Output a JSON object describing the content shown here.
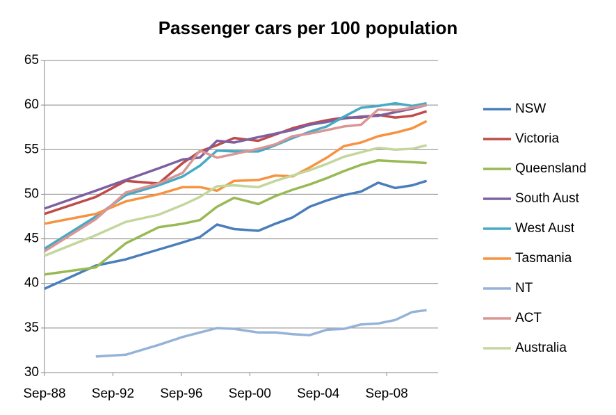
{
  "chart_data": {
    "type": "line",
    "title": "Passenger cars per 100 population",
    "x": [
      "1988-09",
      "1991-09",
      "1993-06",
      "1995-05",
      "1996-10",
      "1997-10",
      "1998-10",
      "1999-10",
      "2001-03",
      "2002-03",
      "2003-03",
      "2004-03",
      "2005-03",
      "2006-03",
      "2007-03",
      "2008-03",
      "2009-03",
      "2010-03",
      "2011-01"
    ],
    "xlim": [
      "1988-09",
      "2011-09"
    ],
    "xticks": [
      {
        "value": "1988-09",
        "label": "Sep-88"
      },
      {
        "value": "1992-09",
        "label": "Sep-92"
      },
      {
        "value": "1996-09",
        "label": "Sep-96"
      },
      {
        "value": "2000-09",
        "label": "Sep-00"
      },
      {
        "value": "2004-09",
        "label": "Sep-04"
      },
      {
        "value": "2008-09",
        "label": "Sep-08"
      }
    ],
    "ylim": [
      30,
      65
    ],
    "yticks": [
      30,
      35,
      40,
      45,
      50,
      55,
      60,
      65
    ],
    "grid": true,
    "legend": "right",
    "series": [
      {
        "name": "NSW",
        "color": "#4a7ebb",
        "values": [
          39.4,
          42.0,
          42.7,
          43.8,
          44.6,
          45.2,
          46.6,
          46.1,
          45.9,
          46.7,
          47.4,
          48.6,
          49.3,
          49.9,
          50.3,
          51.3,
          50.7,
          51.0,
          51.5
        ]
      },
      {
        "name": "Victoria",
        "color": "#be4b48",
        "values": [
          47.8,
          49.7,
          51.5,
          51.2,
          53.5,
          54.8,
          55.5,
          56.3,
          56.0,
          56.7,
          57.4,
          57.9,
          58.3,
          58.6,
          58.6,
          58.9,
          58.6,
          58.8,
          59.3
        ]
      },
      {
        "name": "Queensland",
        "color": "#98b954",
        "values": [
          41.0,
          41.8,
          44.5,
          46.3,
          46.7,
          47.1,
          48.6,
          49.6,
          48.9,
          49.8,
          50.5,
          51.1,
          51.8,
          52.6,
          53.3,
          53.8,
          53.7,
          53.6,
          53.5
        ]
      },
      {
        "name": "South Aust",
        "color": "#7d60a0",
        "values": [
          48.4,
          50.4,
          51.6,
          52.9,
          53.9,
          54.1,
          56.0,
          55.8,
          56.4,
          56.8,
          57.2,
          57.8,
          58.1,
          58.5,
          58.7,
          58.8,
          59.2,
          59.6,
          60.0
        ]
      },
      {
        "name": "West Aust",
        "color": "#46aac5",
        "values": [
          43.9,
          47.5,
          49.9,
          51.0,
          52.0,
          53.2,
          54.9,
          54.8,
          54.8,
          55.5,
          56.3,
          57.0,
          57.6,
          58.7,
          59.7,
          59.9,
          60.2,
          59.9,
          60.2
        ]
      },
      {
        "name": "Tasmania",
        "color": "#f69240",
        "values": [
          46.7,
          47.8,
          49.2,
          50.0,
          50.8,
          50.8,
          50.4,
          51.5,
          51.6,
          52.1,
          52.0,
          53.0,
          54.1,
          55.4,
          55.8,
          56.5,
          56.9,
          57.4,
          58.2
        ]
      },
      {
        "name": "NT",
        "color": "#95b3d7",
        "values": [
          null,
          31.8,
          32.0,
          33.1,
          34.0,
          34.5,
          35.0,
          34.9,
          34.5,
          34.5,
          34.3,
          34.2,
          34.8,
          34.9,
          35.4,
          35.5,
          35.9,
          36.8,
          37.0
        ]
      },
      {
        "name": "ACT",
        "color": "#d99694",
        "values": [
          43.6,
          47.2,
          50.2,
          51.2,
          52.4,
          54.9,
          54.1,
          54.5,
          55.1,
          55.6,
          56.5,
          56.8,
          57.2,
          57.6,
          57.8,
          59.5,
          59.4,
          59.7,
          60.0
        ]
      },
      {
        "name": "Australia",
        "color": "#c3d69b",
        "values": [
          43.1,
          45.4,
          46.9,
          47.7,
          48.8,
          49.7,
          50.9,
          51.0,
          50.8,
          51.5,
          52.1,
          52.7,
          53.4,
          54.2,
          54.7,
          55.2,
          55.0,
          55.1,
          55.5
        ]
      }
    ]
  }
}
